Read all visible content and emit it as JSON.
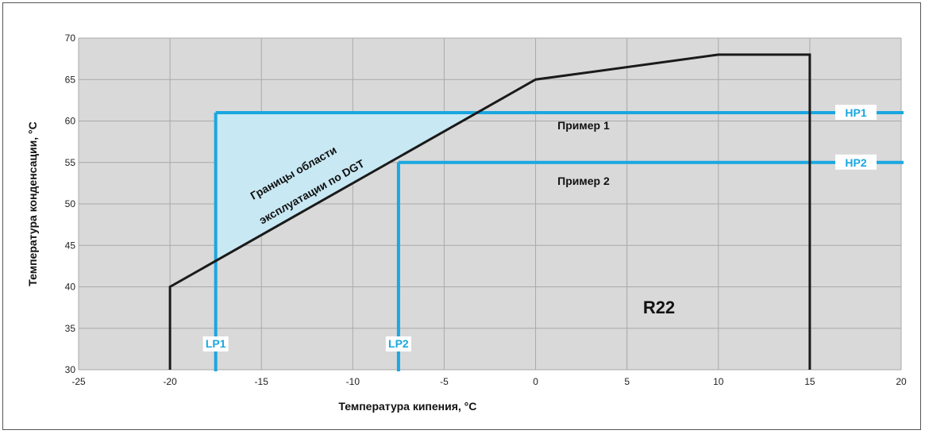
{
  "chart_data": {
    "type": "line",
    "title": "",
    "xlabel": "Температура кипения, °C",
    "ylabel": "Температура конденсации, °C",
    "xlim": [
      -25,
      20
    ],
    "ylim": [
      30,
      70
    ],
    "x_ticks": [
      -25,
      -20,
      -15,
      -10,
      -5,
      0,
      5,
      10,
      15,
      20
    ],
    "y_ticks": [
      30,
      35,
      40,
      45,
      50,
      55,
      60,
      65,
      70
    ],
    "grid": true,
    "refrigerant": "R22",
    "envelope": {
      "name": "Границы области эксплуатации по DGT",
      "points": [
        [
          -20,
          30
        ],
        [
          -20,
          40
        ],
        [
          0,
          65
        ],
        [
          10,
          68
        ],
        [
          15,
          68
        ],
        [
          15,
          30
        ]
      ]
    },
    "lines": [
      {
        "name": "LP1",
        "type": "vertical",
        "x": -17.5,
        "y_top": 61
      },
      {
        "name": "LP2",
        "type": "vertical",
        "x": -7.5,
        "y_top": 55
      },
      {
        "name": "HP1",
        "type": "horizontal",
        "y": 61,
        "x_start": -17.5
      },
      {
        "name": "HP2",
        "type": "horizontal",
        "y": 55,
        "x_start": -7.5
      }
    ],
    "annotations": [
      {
        "text": "Пример 1",
        "x": 1.2,
        "y": 59
      },
      {
        "text": "Пример 2",
        "x": 1.2,
        "y": 52.3
      }
    ],
    "colors": {
      "envelope": "#1a1a1a",
      "lines": "#1aa7e0",
      "fill": "#c8e8f3",
      "grid": "#a9a9a9",
      "plot_bg": "#d9d9d9"
    }
  }
}
